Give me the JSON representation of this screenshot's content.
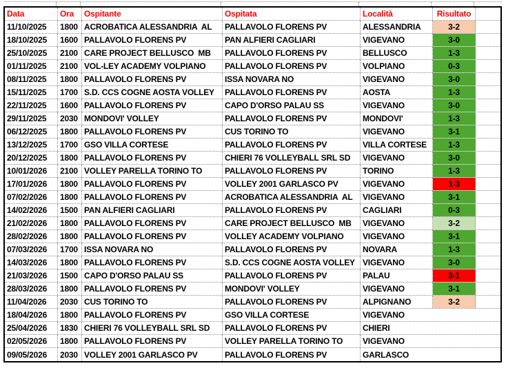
{
  "palette": {
    "header_text": "#FF0000",
    "body_text": "#000000",
    "table_frame": "#000000",
    "grid_line": "#8A8A8A",
    "cell_bg": "#FFFFFF",
    "result_fills": {
      "green": "#4EA72E",
      "lightgreen": "#C6E0B4",
      "peach": "#F8CBAD",
      "red": "#FF0000",
      "none": "transparent"
    }
  },
  "header": {
    "data": "Data",
    "ora": "Ora",
    "ospitante": "Ospitante",
    "ospitata": "Ospitata",
    "localita": "Località",
    "risultato": "Risultato"
  },
  "rows": [
    {
      "data": "11/10/2025",
      "ora": "1800",
      "ospitante": "ACROBATICA ALESSANDRIA  AL",
      "ospitata": "PALLAVOLO FLORENS PV",
      "localita": "ALESSANDRIA",
      "risultato": "3-2",
      "result_style": "peach"
    },
    {
      "data": "18/10/2025",
      "ora": "1600",
      "ospitante": "PALLAVOLO FLORENS PV",
      "ospitata": "PAN ALFIERI CAGLIARI",
      "localita": "VIGEVANO",
      "risultato": "3-0",
      "result_style": "green"
    },
    {
      "data": "25/10/2025",
      "ora": "2100",
      "ospitante": "CARE PROJECT BELLUSCO  MB",
      "ospitata": "PALLAVOLO FLORENS PV",
      "localita": "BELLUSCO",
      "risultato": "1-3",
      "result_style": "green"
    },
    {
      "data": "01/11/2025",
      "ora": "2100",
      "ospitante": "VOL-LEY ACADEMY VOLPIANO",
      "ospitata": "PALLAVOLO FLORENS PV",
      "localita": "VOLPIANO",
      "risultato": "0-3",
      "result_style": "green"
    },
    {
      "data": "08/11/2025",
      "ora": "1800",
      "ospitante": "PALLAVOLO FLORENS PV",
      "ospitata": "ISSA NOVARA NO",
      "localita": "VIGEVANO",
      "risultato": "3-0",
      "result_style": "green"
    },
    {
      "data": "15/11/2025",
      "ora": "1700",
      "ospitante": "S.D. CCS COGNE AOSTA VOLLEY",
      "ospitata": "PALLAVOLO FLORENS PV",
      "localita": "AOSTA",
      "risultato": "1-3",
      "result_style": "green"
    },
    {
      "data": "22/11/2025",
      "ora": "1600",
      "ospitante": "PALLAVOLO FLORENS PV",
      "ospitata": "CAPO D'ORSO PALAU SS",
      "localita": "VIGEVANO",
      "risultato": "3-0",
      "result_style": "green"
    },
    {
      "data": "29/11/2025",
      "ora": "2030",
      "ospitante": "MONDOVI' VOLLEY",
      "ospitata": "PALLAVOLO FLORENS PV",
      "localita": "MONDOVI'",
      "risultato": "1-3",
      "result_style": "green"
    },
    {
      "data": "06/12/2025",
      "ora": "1800",
      "ospitante": "PALLAVOLO FLORENS PV",
      "ospitata": "CUS TORINO TO",
      "localita": "VIGEVANO",
      "risultato": "3-1",
      "result_style": "green"
    },
    {
      "data": "13/12/2025",
      "ora": "1700",
      "ospitante": "GSO VILLA CORTESE",
      "ospitata": "PALLAVOLO FLORENS PV",
      "localita": "VILLA CORTESE",
      "risultato": "1-3",
      "result_style": "green"
    },
    {
      "data": "20/12/2025",
      "ora": "1800",
      "ospitante": "PALLAVOLO FLORENS PV",
      "ospitata": "CHIERI 76 VOLLEYBALL SRL SD",
      "localita": "VIGEVANO",
      "risultato": "3-0",
      "result_style": "green"
    },
    {
      "data": "10/01/2026",
      "ora": "2100",
      "ospitante": "VOLLEY PARELLA TORINO TO",
      "ospitata": "PALLAVOLO FLORENS PV",
      "localita": "TORINO",
      "risultato": "1-3",
      "result_style": "green"
    },
    {
      "data": "17/01/2026",
      "ora": "1800",
      "ospitante": "PALLAVOLO FLORENS PV",
      "ospitata": "VOLLEY 2001 GARLASCO PV",
      "localita": "VIGEVANO",
      "risultato": "1-3",
      "result_style": "red"
    },
    {
      "data": "07/02/2026",
      "ora": "1800",
      "ospitante": "PALLAVOLO FLORENS PV",
      "ospitata": "ACROBATICA ALESSANDRIA  AL",
      "localita": "VIGEVANO",
      "risultato": "3-1",
      "result_style": "green"
    },
    {
      "data": "14/02/2026",
      "ora": "1500",
      "ospitante": "PAN ALFIERI CAGLIARI",
      "ospitata": "PALLAVOLO FLORENS PV",
      "localita": "CAGLIARI",
      "risultato": "0-3",
      "result_style": "green"
    },
    {
      "data": "21/02/2026",
      "ora": "1800",
      "ospitante": "PALLAVOLO FLORENS PV",
      "ospitata": "CARE PROJECT BELLUSCO  MB",
      "localita": "VIGEVANO",
      "risultato": "3-2",
      "result_style": "lightgreen"
    },
    {
      "data": "28/02/2026",
      "ora": "1800",
      "ospitante": "PALLAVOLO FLORENS PV",
      "ospitata": "VOLLEY ACADEMY VOLPIANO",
      "localita": "VIGEVANO",
      "risultato": "3-1",
      "result_style": "green"
    },
    {
      "data": "07/03/2026",
      "ora": "1700",
      "ospitante": "ISSA NOVARA NO",
      "ospitata": "PALLAVOLO FLORENS PV",
      "localita": "NOVARA",
      "risultato": "1-3",
      "result_style": "green"
    },
    {
      "data": "14/03/2026",
      "ora": "1800",
      "ospitante": "PALLAVOLO FLORENS PV",
      "ospitata": "S.D. CCS COGNE AOSTA VOLLEY",
      "localita": "VIGEVANO",
      "risultato": "3-0",
      "result_style": "green"
    },
    {
      "data": "21/03/2026",
      "ora": "1500",
      "ospitante": "CAPO D'ORSO PALAU SS",
      "ospitata": "PALLAVOLO FLORENS PV",
      "localita": "PALAU",
      "risultato": "3-1",
      "result_style": "red"
    },
    {
      "data": "28/03/2026",
      "ora": "1800",
      "ospitante": "PALLAVOLO FLORENS PV",
      "ospitata": "MONDOVI' VOLLEY",
      "localita": "VIGEVANO",
      "risultato": "3-1",
      "result_style": "green"
    },
    {
      "data": "11/04/2026",
      "ora": "2030",
      "ospitante": "CUS TORINO TO",
      "ospitata": "PALLAVOLO FLORENS PV",
      "localita": "ALPIGNANO",
      "risultato": "3-2",
      "result_style": "peach"
    },
    {
      "data": "18/04/2026",
      "ora": "1800",
      "ospitante": "PALLAVOLO FLORENS PV",
      "ospitata": "GSO VILLA CORTESE",
      "localita": "VIGEVANO",
      "risultato": "",
      "result_style": "none"
    },
    {
      "data": "25/04/2026",
      "ora": "1830",
      "ospitante": "CHIERI 76 VOLLEYBALL SRL SD",
      "ospitata": "PALLAVOLO FLORENS PV",
      "localita": "CHIERI",
      "risultato": "",
      "result_style": "none"
    },
    {
      "data": "02/05/2026",
      "ora": "1800",
      "ospitante": "PALLAVOLO FLORENS PV",
      "ospitata": "VOLLEY PARELLA TORINO TO",
      "localita": "VIGEVANO",
      "risultato": "",
      "result_style": "none"
    },
    {
      "data": "09/05/2026",
      "ora": "2030",
      "ospitante": "VOLLEY 2001 GARLASCO PV",
      "ospitata": "PALLAVOLO FLORENS PV",
      "localita": "GARLASCO",
      "risultato": "",
      "result_style": "none"
    }
  ]
}
